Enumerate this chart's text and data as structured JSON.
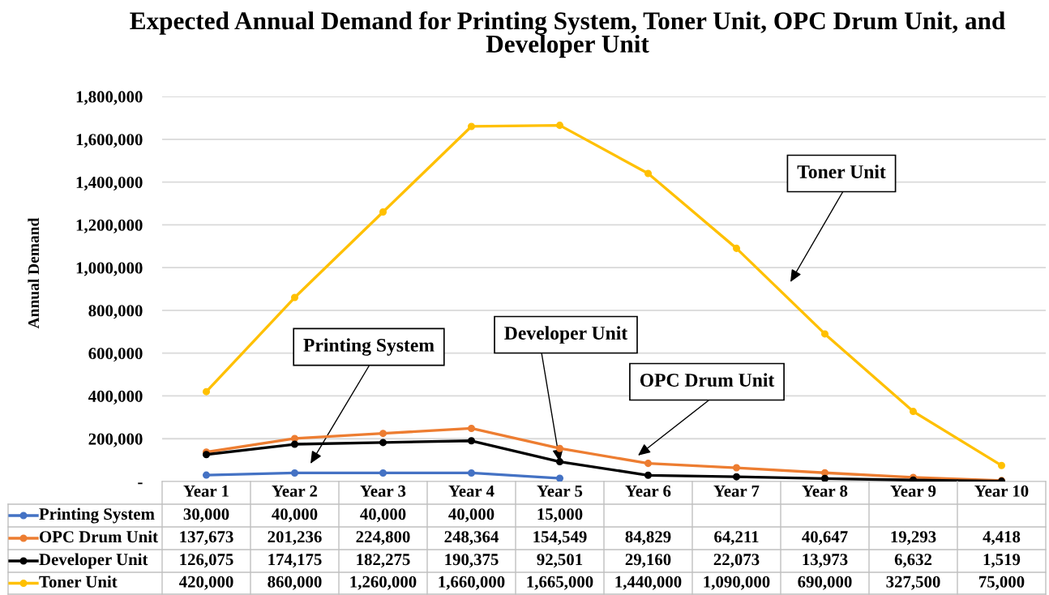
{
  "chart_data": {
    "type": "line",
    "title": "Expected Annual Demand for Printing System, Toner Unit, OPC Drum Unit, and Developer Unit",
    "ylabel": "Annual Demand",
    "categories": [
      "Year 1",
      "Year 2",
      "Year 3",
      "Year 4",
      "Year 5",
      "Year 6",
      "Year 7",
      "Year 8",
      "Year 9",
      "Year 10"
    ],
    "series": [
      {
        "name": "Printing System",
        "color": "#4472c4",
        "values": [
          30000,
          40000,
          40000,
          40000,
          15000,
          null,
          null,
          null,
          null,
          null
        ],
        "value_labels": [
          "30,000",
          "40,000",
          "40,000",
          "40,000",
          "15,000",
          null,
          null,
          null,
          null,
          null
        ]
      },
      {
        "name": "OPC Drum Unit",
        "color": "#ed7d31",
        "values": [
          137673,
          201236,
          224800,
          248364,
          154549,
          84829,
          64211,
          40647,
          19293,
          4418
        ],
        "value_labels": [
          "137,673",
          "201,236",
          "224,800",
          "248,364",
          "154,549",
          "84,829",
          "64,211",
          "40,647",
          "19,293",
          "4,418"
        ]
      },
      {
        "name": "Developer Unit",
        "color": "#000000",
        "values": [
          126075,
          174175,
          182275,
          190375,
          92501,
          29160,
          22073,
          13973,
          6632,
          1519
        ],
        "value_labels": [
          "126,075",
          "174,175",
          "182,275",
          "190,375",
          "92,501",
          "29,160",
          "22,073",
          "13,973",
          "6,632",
          "1,519"
        ]
      },
      {
        "name": "Toner Unit",
        "color": "#ffc000",
        "values": [
          420000,
          860000,
          1260000,
          1660000,
          1665000,
          1440000,
          1090000,
          690000,
          327500,
          75000
        ],
        "value_labels": [
          "420,000",
          "860,000",
          "1,260,000",
          "1,660,000",
          "1,665,000",
          "1,440,000",
          "1,090,000",
          "690,000",
          "327,500",
          "75,000"
        ]
      }
    ],
    "ylim": [
      0,
      1800000
    ],
    "yticks": [
      {
        "value": 0,
        "label": "-"
      },
      {
        "value": 200000,
        "label": "200,000"
      },
      {
        "value": 400000,
        "label": "400,000"
      },
      {
        "value": 600000,
        "label": "600,000"
      },
      {
        "value": 800000,
        "label": "800,000"
      },
      {
        "value": 1000000,
        "label": "1,000,000"
      },
      {
        "value": 1200000,
        "label": "1,200,000"
      },
      {
        "value": 1400000,
        "label": "1,400,000"
      },
      {
        "value": 1600000,
        "label": "1,600,000"
      },
      {
        "value": 1800000,
        "label": "1,800,000"
      }
    ],
    "annotations": [
      "Toner Unit",
      {
        "text": "Developer Unit",
        "x": "Year 5",
        "y": 92501
      },
      "Printing System",
      "OPC Drum Unit"
    ],
    "grid": "y",
    "legend": "bottom",
    "marker": "circle",
    "line_style": "solid"
  }
}
